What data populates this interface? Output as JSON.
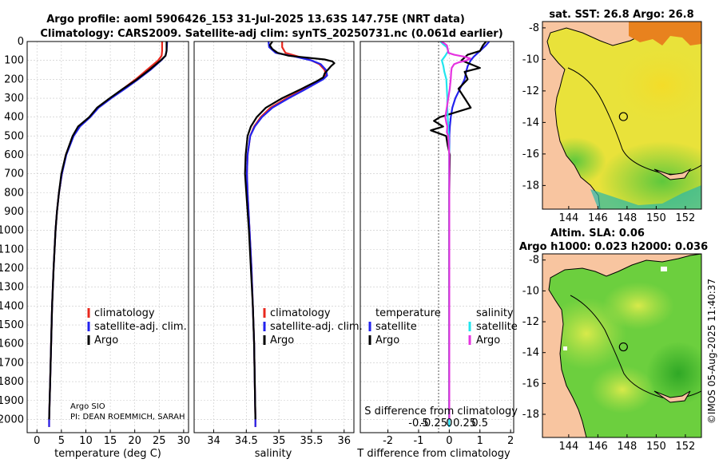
{
  "title": {
    "line1": "Argo profile: aoml 5906426_153 31-Jul-2025 13.63S 147.75E (NRT data)",
    "line2": "Climatology: CARS2009. Satellite-adj clim: synTS_20250731.nc (0.061d earlier)"
  },
  "watermark": "©IMOS 05-Aug-2025 11:40:37",
  "colors": {
    "climatology": "#e8281e",
    "satellite": "#2222ee",
    "argo": "#000000",
    "satellite_salinity": "#22e6ee",
    "argo_salinity": "#e633e0",
    "land": "#f8c5a0",
    "grid": "#c8c8c8"
  },
  "chart_data": [
    {
      "type": "line",
      "name": "temperature-profile",
      "xlabel": "temperature (deg C)",
      "ylabel": "",
      "xlim": [
        -2,
        31
      ],
      "ylim": [
        2070,
        0
      ],
      "xticks": [
        "0",
        "5",
        "10",
        "15",
        "20",
        "25",
        "30"
      ],
      "xtick_values": [
        0,
        5,
        10,
        15,
        20,
        25,
        30
      ],
      "yticks": [
        "0",
        "100",
        "200",
        "300",
        "400",
        "500",
        "600",
        "700",
        "800",
        "900",
        "1000",
        "1100",
        "1200",
        "1300",
        "1400",
        "1500",
        "1600",
        "1700",
        "1800",
        "1900",
        "2000"
      ],
      "ytick_values": [
        0,
        100,
        200,
        300,
        400,
        500,
        600,
        700,
        800,
        900,
        1000,
        1100,
        1200,
        1300,
        1400,
        1500,
        1600,
        1700,
        1800,
        1900,
        2000
      ],
      "legend": [
        "climatology",
        "satellite-adj. clim.",
        "Argo"
      ],
      "legend_position": "lower-right",
      "annotations": [
        "Argo SIO",
        "PI: DEAN ROEMMICH, SARAH"
      ],
      "series": [
        {
          "name": "climatology",
          "color_key": "climatology",
          "depth": [
            0,
            10,
            50,
            75,
            100,
            150,
            200,
            250,
            300,
            350,
            400,
            450,
            500,
            600,
            700,
            800,
            900,
            1000,
            1200,
            1400,
            1600,
            1800,
            2000,
            2040
          ],
          "values": [
            25.6,
            25.6,
            25.6,
            25.5,
            24.8,
            22.5,
            20.2,
            17.6,
            15.0,
            12.5,
            10.8,
            8.7,
            7.4,
            5.9,
            5.1,
            4.5,
            4.1,
            3.8,
            3.4,
            3.1,
            2.9,
            2.7,
            2.5,
            2.5
          ]
        },
        {
          "name": "satellite-adj. clim.",
          "color_key": "satellite",
          "depth": [
            0,
            10,
            50,
            75,
            100,
            150,
            200,
            250,
            300,
            350,
            400,
            450,
            500,
            600,
            700,
            800,
            900,
            1000,
            1200,
            1400,
            1600,
            1800,
            2000,
            2040
          ],
          "values": [
            26.6,
            26.6,
            26.5,
            26.3,
            25.4,
            23.2,
            20.7,
            18.0,
            15.2,
            12.6,
            10.9,
            8.8,
            7.5,
            6.0,
            5.1,
            4.5,
            4.1,
            3.8,
            3.4,
            3.1,
            2.9,
            2.7,
            2.5,
            2.5
          ]
        },
        {
          "name": "Argo",
          "color_key": "argo",
          "depth": [
            0,
            20,
            50,
            75,
            100,
            150,
            200,
            250,
            300,
            350,
            400,
            450,
            500,
            600,
            700,
            800,
            900,
            1000,
            1200,
            1400,
            1600,
            1800,
            2000
          ],
          "values": [
            26.5,
            26.5,
            26.5,
            26.3,
            25.3,
            23.0,
            20.5,
            17.6,
            14.9,
            12.3,
            10.7,
            8.4,
            7.3,
            5.9,
            5.0,
            4.5,
            4.1,
            3.8,
            3.4,
            3.1,
            2.9,
            2.7,
            2.5
          ]
        }
      ]
    },
    {
      "type": "line",
      "name": "salinity-profile",
      "xlabel": "salinity",
      "ylabel": "",
      "xlim": [
        33.7,
        36.15
      ],
      "ylim": [
        2070,
        0
      ],
      "xticks": [
        "34",
        "34.5",
        "35",
        "35.5",
        "36"
      ],
      "xtick_values": [
        34,
        34.5,
        35,
        35.5,
        36
      ],
      "legend": [
        "climatology",
        "satellite-adj. clim.",
        "Argo"
      ],
      "legend_position": "lower-right",
      "series": [
        {
          "name": "climatology",
          "color_key": "climatology",
          "depth": [
            0,
            30,
            60,
            80,
            100,
            120,
            150,
            180,
            200,
            250,
            300,
            350,
            400,
            450,
            500,
            600,
            700,
            800,
            1000,
            1200,
            1400,
            1600,
            1800,
            2000,
            2040
          ],
          "values": [
            35.05,
            35.05,
            35.1,
            35.3,
            35.5,
            35.62,
            35.7,
            35.72,
            35.66,
            35.4,
            35.12,
            34.87,
            34.72,
            34.62,
            34.56,
            34.52,
            34.51,
            34.52,
            34.55,
            34.58,
            34.6,
            34.62,
            34.63,
            34.64,
            34.64
          ]
        },
        {
          "name": "satellite-adj. clim.",
          "color_key": "satellite",
          "depth": [
            0,
            30,
            60,
            80,
            100,
            120,
            150,
            180,
            200,
            250,
            300,
            350,
            400,
            450,
            500,
            600,
            700,
            800,
            1000,
            1200,
            1400,
            1600,
            1800,
            2000,
            2040
          ],
          "values": [
            34.84,
            34.85,
            34.95,
            35.25,
            35.5,
            35.64,
            35.72,
            35.74,
            35.68,
            35.42,
            35.15,
            34.9,
            34.74,
            34.63,
            34.56,
            34.52,
            34.51,
            34.52,
            34.55,
            34.58,
            34.6,
            34.62,
            34.63,
            34.64,
            34.64
          ]
        },
        {
          "name": "Argo",
          "color_key": "argo",
          "depth": [
            0,
            10,
            20,
            40,
            60,
            75,
            85,
            95,
            105,
            115,
            130,
            150,
            170,
            190,
            210,
            250,
            300,
            350,
            400,
            450,
            500,
            600,
            700,
            800,
            1000,
            1200,
            1400,
            1600,
            1800,
            2000
          ],
          "values": [
            34.9,
            34.88,
            34.86,
            34.9,
            34.98,
            35.15,
            35.42,
            35.7,
            35.82,
            35.85,
            35.8,
            35.75,
            35.7,
            35.68,
            35.58,
            35.35,
            35.05,
            34.8,
            34.66,
            34.57,
            34.52,
            34.49,
            34.48,
            34.5,
            34.54,
            34.57,
            34.6,
            34.62,
            34.63,
            34.64
          ]
        }
      ]
    },
    {
      "type": "line",
      "name": "difference-profile",
      "xlabel": "T difference from climatology",
      "ylabel": "",
      "xlim": [
        -2.9,
        2.1
      ],
      "ylim": [
        2070,
        0
      ],
      "xticks": [
        "-2",
        "-1",
        "0",
        "1",
        "2"
      ],
      "xtick_values": [
        -2,
        -1,
        0,
        1,
        2
      ],
      "secondary_xlabel": "S difference from climatology",
      "secondary_xticks": [
        "-0.5",
        "-0.25",
        "0",
        "0.25",
        "0.5"
      ],
      "secondary_xtick_values": [
        -0.5,
        -0.25,
        0,
        0.25,
        0.5
      ],
      "legend_headers": [
        "temperature",
        "salinity"
      ],
      "legend": [
        "satellite",
        "Argo",
        "satellite",
        "Argo"
      ],
      "legend_position": "lower-right",
      "series": [
        {
          "name": "temperature satellite",
          "color_key": "satellite",
          "depth": [
            0,
            20,
            50,
            80,
            100,
            130,
            160,
            200,
            250,
            300,
            350,
            400,
            450,
            500,
            600,
            700,
            800,
            1000,
            1200,
            1500,
            1800,
            2000,
            2040
          ],
          "values": [
            1.3,
            1.2,
            1.0,
            0.8,
            0.7,
            0.6,
            0.55,
            0.5,
            0.35,
            0.2,
            0.1,
            0.05,
            0.02,
            0,
            0,
            0,
            0,
            0,
            0,
            0,
            0,
            0,
            0
          ]
        },
        {
          "name": "temperature Argo",
          "color_key": "argo",
          "depth": [
            0,
            20,
            50,
            70,
            100,
            120,
            140,
            160,
            200,
            250,
            300,
            350,
            400,
            420,
            450,
            470,
            500,
            550,
            600,
            700,
            800,
            1000,
            1200,
            1500,
            1800,
            2000
          ],
          "values": [
            1.2,
            1.1,
            1.0,
            0.6,
            0.4,
            0.7,
            1.0,
            0.5,
            0.6,
            0.3,
            0.5,
            0.7,
            -0.3,
            -0.5,
            -0.2,
            -0.6,
            -0.1,
            -0.05,
            0.02,
            0.01,
            0,
            0,
            0,
            0,
            0,
            0
          ]
        },
        {
          "name": "salinity satellite",
          "color_key": "satellite_salinity",
          "depth": [
            0,
            15,
            30,
            50,
            75,
            100,
            130,
            160,
            200,
            250,
            300,
            350,
            400,
            450,
            500,
            600,
            700,
            800,
            1000,
            1200,
            1500,
            1800,
            2000,
            2040
          ],
          "values": [
            -0.18,
            -0.12,
            -0.05,
            -0.02,
            -0.08,
            -0.15,
            -0.12,
            -0.1,
            -0.06,
            -0.05,
            -0.04,
            -0.04,
            -0.03,
            -0.02,
            -0.01,
            0,
            0,
            0,
            0,
            0,
            0,
            0,
            0,
            0
          ]
        },
        {
          "name": "salinity Argo",
          "color_key": "argo_salinity",
          "depth": [
            0,
            10,
            20,
            40,
            60,
            70,
            80,
            90,
            100,
            110,
            120,
            140,
            160,
            200,
            250,
            300,
            350,
            400,
            430,
            450,
            480,
            500,
            550,
            600,
            700,
            800,
            1000,
            1200,
            1500,
            1800,
            2000
          ],
          "values": [
            -0.16,
            -0.1,
            -0.05,
            -0.03,
            -0.02,
            0.1,
            0.3,
            0.43,
            0.35,
            0.2,
            0.1,
            0.05,
            0.04,
            0.03,
            0.01,
            -0.02,
            -0.05,
            -0.08,
            -0.06,
            -0.04,
            -0.05,
            -0.02,
            -0.01,
            0,
            0,
            0,
            0,
            0,
            0,
            0,
            0
          ]
        }
      ]
    },
    {
      "type": "heatmap",
      "name": "sst-map",
      "title": "sat. SST: 26.8 Argo: 26.8",
      "xlim": [
        142.2,
        153.1
      ],
      "ylim": [
        -19.5,
        -7.6
      ],
      "xticks": [
        "144",
        "146",
        "148",
        "150",
        "152"
      ],
      "xtick_values": [
        144,
        146,
        148,
        150,
        152
      ],
      "yticks": [
        "-8",
        "-10",
        "-12",
        "-14",
        "-16",
        "-18"
      ],
      "ytick_values": [
        -8,
        -10,
        -12,
        -14,
        -16,
        -18
      ],
      "marker": {
        "lon": 147.75,
        "lat": -13.63
      }
    },
    {
      "type": "heatmap",
      "name": "sla-map",
      "title": "Altim. SLA: 0.06",
      "subtitle": "Argo h1000: 0.023 h2000: 0.036",
      "xlim": [
        142.2,
        153.1
      ],
      "ylim": [
        -19.5,
        -7.6
      ],
      "xticks": [
        "144",
        "146",
        "148",
        "150",
        "152"
      ],
      "xtick_values": [
        144,
        146,
        148,
        150,
        152
      ],
      "yticks": [
        "-8",
        "-10",
        "-12",
        "-14",
        "-16",
        "-18"
      ],
      "ytick_values": [
        -8,
        -10,
        -12,
        -14,
        -16,
        -18
      ],
      "marker": {
        "lon": 147.75,
        "lat": -13.63
      }
    }
  ]
}
